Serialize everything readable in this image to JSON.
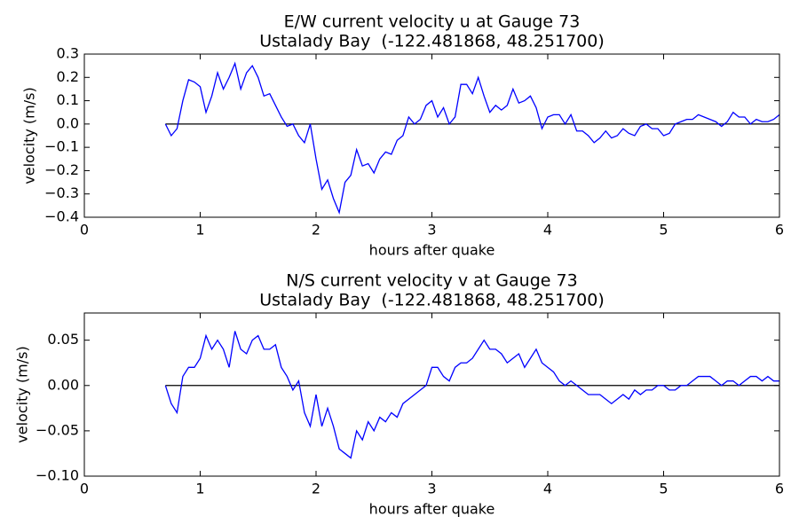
{
  "chart_data": [
    {
      "type": "line",
      "title": "E/W current velocity u at Gauge 73",
      "subtitle": "Ustalady Bay  (-122.481868, 48.251700)",
      "xlabel": "hours after quake",
      "ylabel": "velocity (m/s)",
      "color": "#0000ff",
      "hline": 0,
      "xlim": [
        0,
        6
      ],
      "xticks": [
        0,
        1,
        2,
        3,
        4,
        5,
        6
      ],
      "ylim": [
        -0.4,
        0.3
      ],
      "yticks": [
        {
          "value": -0.4,
          "label": "−0.4"
        },
        {
          "value": -0.3,
          "label": "−0.3"
        },
        {
          "value": -0.2,
          "label": "−0.2"
        },
        {
          "value": -0.1,
          "label": "−0.1"
        },
        {
          "value": 0,
          "label": "0.0"
        },
        0.1,
        0.2,
        0.3
      ],
      "x": [
        0.7,
        0.75,
        0.8,
        0.85,
        0.9,
        0.95,
        1.0,
        1.05,
        1.1,
        1.15,
        1.2,
        1.25,
        1.3,
        1.35,
        1.4,
        1.45,
        1.5,
        1.55,
        1.6,
        1.65,
        1.7,
        1.75,
        1.8,
        1.85,
        1.9,
        1.95,
        2.0,
        2.05,
        2.1,
        2.15,
        2.2,
        2.25,
        2.3,
        2.35,
        2.4,
        2.45,
        2.5,
        2.55,
        2.6,
        2.65,
        2.7,
        2.75,
        2.8,
        2.85,
        2.9,
        2.95,
        3.0,
        3.05,
        3.1,
        3.15,
        3.2,
        3.25,
        3.3,
        3.35,
        3.4,
        3.45,
        3.5,
        3.55,
        3.6,
        3.65,
        3.7,
        3.75,
        3.8,
        3.85,
        3.9,
        3.95,
        4.0,
        4.05,
        4.1,
        4.15,
        4.2,
        4.25,
        4.3,
        4.35,
        4.4,
        4.45,
        4.5,
        4.55,
        4.6,
        4.65,
        4.7,
        4.75,
        4.8,
        4.85,
        4.9,
        4.95,
        5.0,
        5.05,
        5.1,
        5.15,
        5.2,
        5.25,
        5.3,
        5.35,
        5.4,
        5.45,
        5.5,
        5.55,
        5.6,
        5.65,
        5.7,
        5.75,
        5.8,
        5.85,
        5.9,
        5.95,
        6.0
      ],
      "values": [
        0.0,
        -0.05,
        -0.02,
        0.1,
        0.19,
        0.18,
        0.16,
        0.05,
        0.12,
        0.22,
        0.15,
        0.2,
        0.26,
        0.15,
        0.22,
        0.25,
        0.2,
        0.12,
        0.13,
        0.08,
        0.03,
        -0.01,
        0.0,
        -0.05,
        -0.08,
        0.0,
        -0.15,
        -0.28,
        -0.24,
        -0.32,
        -0.38,
        -0.25,
        -0.22,
        -0.11,
        -0.18,
        -0.17,
        -0.21,
        -0.15,
        -0.12,
        -0.13,
        -0.07,
        -0.05,
        0.03,
        0.0,
        0.02,
        0.08,
        0.1,
        0.03,
        0.07,
        0.0,
        0.03,
        0.17,
        0.17,
        0.13,
        0.2,
        0.12,
        0.05,
        0.08,
        0.06,
        0.08,
        0.15,
        0.09,
        0.1,
        0.12,
        0.07,
        -0.02,
        0.03,
        0.04,
        0.04,
        0.0,
        0.04,
        -0.03,
        -0.03,
        -0.05,
        -0.08,
        -0.06,
        -0.03,
        -0.06,
        -0.05,
        -0.02,
        -0.04,
        -0.05,
        -0.01,
        0.0,
        -0.02,
        -0.02,
        -0.05,
        -0.04,
        0.0,
        0.01,
        0.02,
        0.02,
        0.04,
        0.03,
        0.02,
        0.01,
        -0.01,
        0.01,
        0.05,
        0.03,
        0.03,
        0.0,
        0.02,
        0.01,
        0.01,
        0.02,
        0.04
      ]
    },
    {
      "type": "line",
      "title": "N/S current velocity v at Gauge 73",
      "subtitle": "Ustalady Bay  (-122.481868, 48.251700)",
      "xlabel": "hours after quake",
      "ylabel": "velocity (m/s)",
      "color": "#0000ff",
      "hline": 0,
      "xlim": [
        0,
        6
      ],
      "xticks": [
        0,
        1,
        2,
        3,
        4,
        5,
        6
      ],
      "ylim": [
        -0.1,
        0.08
      ],
      "yticks": [
        {
          "value": -0.1,
          "label": "−0.10"
        },
        {
          "value": -0.05,
          "label": "−0.05"
        },
        {
          "value": 0,
          "label": "0.00"
        },
        0.05
      ],
      "x": [
        0.7,
        0.75,
        0.8,
        0.85,
        0.9,
        0.95,
        1.0,
        1.05,
        1.1,
        1.15,
        1.2,
        1.25,
        1.3,
        1.35,
        1.4,
        1.45,
        1.5,
        1.55,
        1.6,
        1.65,
        1.7,
        1.75,
        1.8,
        1.85,
        1.9,
        1.95,
        2.0,
        2.05,
        2.1,
        2.15,
        2.2,
        2.25,
        2.3,
        2.35,
        2.4,
        2.45,
        2.5,
        2.55,
        2.6,
        2.65,
        2.7,
        2.75,
        2.8,
        2.85,
        2.9,
        2.95,
        3.0,
        3.05,
        3.1,
        3.15,
        3.2,
        3.25,
        3.3,
        3.35,
        3.4,
        3.45,
        3.5,
        3.55,
        3.6,
        3.65,
        3.7,
        3.75,
        3.8,
        3.85,
        3.9,
        3.95,
        4.0,
        4.05,
        4.1,
        4.15,
        4.2,
        4.25,
        4.3,
        4.35,
        4.4,
        4.45,
        4.5,
        4.55,
        4.6,
        4.65,
        4.7,
        4.75,
        4.8,
        4.85,
        4.9,
        4.95,
        5.0,
        5.05,
        5.1,
        5.15,
        5.2,
        5.25,
        5.3,
        5.35,
        5.4,
        5.45,
        5.5,
        5.55,
        5.6,
        5.65,
        5.7,
        5.75,
        5.8,
        5.85,
        5.9,
        5.95,
        6.0
      ],
      "values": [
        0.0,
        -0.02,
        -0.03,
        0.01,
        0.02,
        0.02,
        0.03,
        0.055,
        0.04,
        0.05,
        0.04,
        0.02,
        0.06,
        0.04,
        0.035,
        0.05,
        0.055,
        0.04,
        0.04,
        0.045,
        0.02,
        0.01,
        -0.005,
        0.005,
        -0.03,
        -0.045,
        -0.01,
        -0.045,
        -0.025,
        -0.045,
        -0.07,
        -0.075,
        -0.08,
        -0.05,
        -0.06,
        -0.04,
        -0.05,
        -0.035,
        -0.04,
        -0.03,
        -0.035,
        -0.02,
        -0.015,
        -0.01,
        -0.005,
        0.0,
        0.02,
        0.02,
        0.01,
        0.005,
        0.02,
        0.025,
        0.025,
        0.03,
        0.04,
        0.05,
        0.04,
        0.04,
        0.035,
        0.025,
        0.03,
        0.035,
        0.02,
        0.03,
        0.04,
        0.025,
        0.02,
        0.015,
        0.005,
        0.0,
        0.005,
        0.0,
        -0.005,
        -0.01,
        -0.01,
        -0.01,
        -0.015,
        -0.02,
        -0.015,
        -0.01,
        -0.015,
        -0.005,
        -0.01,
        -0.005,
        -0.005,
        0.0,
        0.0,
        -0.005,
        -0.005,
        0.0,
        0.0,
        0.005,
        0.01,
        0.01,
        0.01,
        0.005,
        0.0,
        0.005,
        0.005,
        0.0,
        0.005,
        0.01,
        0.01,
        0.005,
        0.01,
        0.005,
        0.005
      ]
    }
  ]
}
